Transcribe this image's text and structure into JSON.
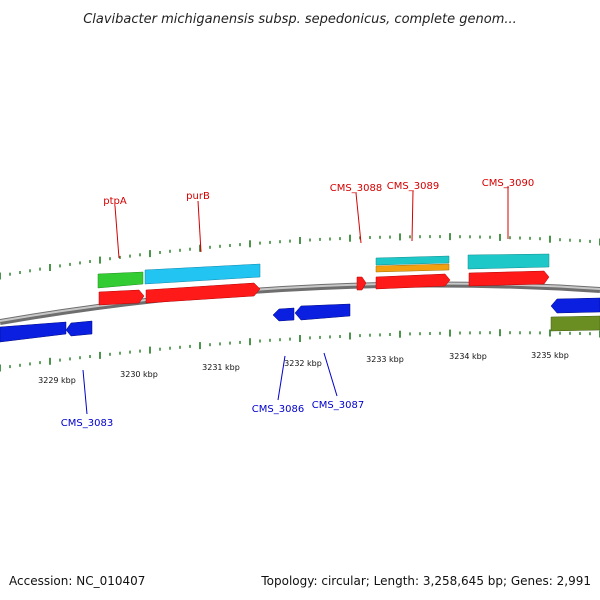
{
  "title": "Clavibacter michiganensis subsp. sepedonicus, complete genom...",
  "footer": {
    "accession": "Accession: NC_010407",
    "topology": "Topology: circular; Length: 3,258,645 bp; Genes: 2,991"
  },
  "colors": {
    "backbone": "#8a8a8a",
    "tick": "#1e7a1e",
    "forward_label": "#d40000",
    "reverse_label": "#0000cc",
    "red_feature": "#ff1a1a",
    "blue_feature": "#0a1fe0",
    "green_feature": "#33cc33",
    "light_blue_feature": "#22c4f2",
    "cyan_feature": "#1fc8c8",
    "orange_feature": "#f2a010",
    "olive_feature": "#6b8e23"
  },
  "scale_labels": [
    {
      "kbp": 3229,
      "text": "3229 kbp"
    },
    {
      "kbp": 3230,
      "text": "3230 kbp"
    },
    {
      "kbp": 3231,
      "text": "3231 kbp"
    },
    {
      "kbp": 3232,
      "text": "3232 kbp"
    },
    {
      "kbp": 3233,
      "text": "3233 kbp"
    },
    {
      "kbp": 3234,
      "text": "3234 kbp"
    },
    {
      "kbp": 3235,
      "text": "3235 kbp"
    }
  ],
  "gene_labels": [
    {
      "text": "ptpA",
      "strand": "forward"
    },
    {
      "text": "purB",
      "strand": "forward"
    },
    {
      "text": "CMS_3088",
      "strand": "forward"
    },
    {
      "text": "CMS_3089",
      "strand": "forward"
    },
    {
      "text": "CMS_3090",
      "strand": "forward"
    },
    {
      "text": "CMS_3083",
      "strand": "reverse"
    },
    {
      "text": "CMS_3086",
      "strand": "reverse"
    },
    {
      "text": "CMS_3087",
      "strand": "reverse"
    }
  ]
}
